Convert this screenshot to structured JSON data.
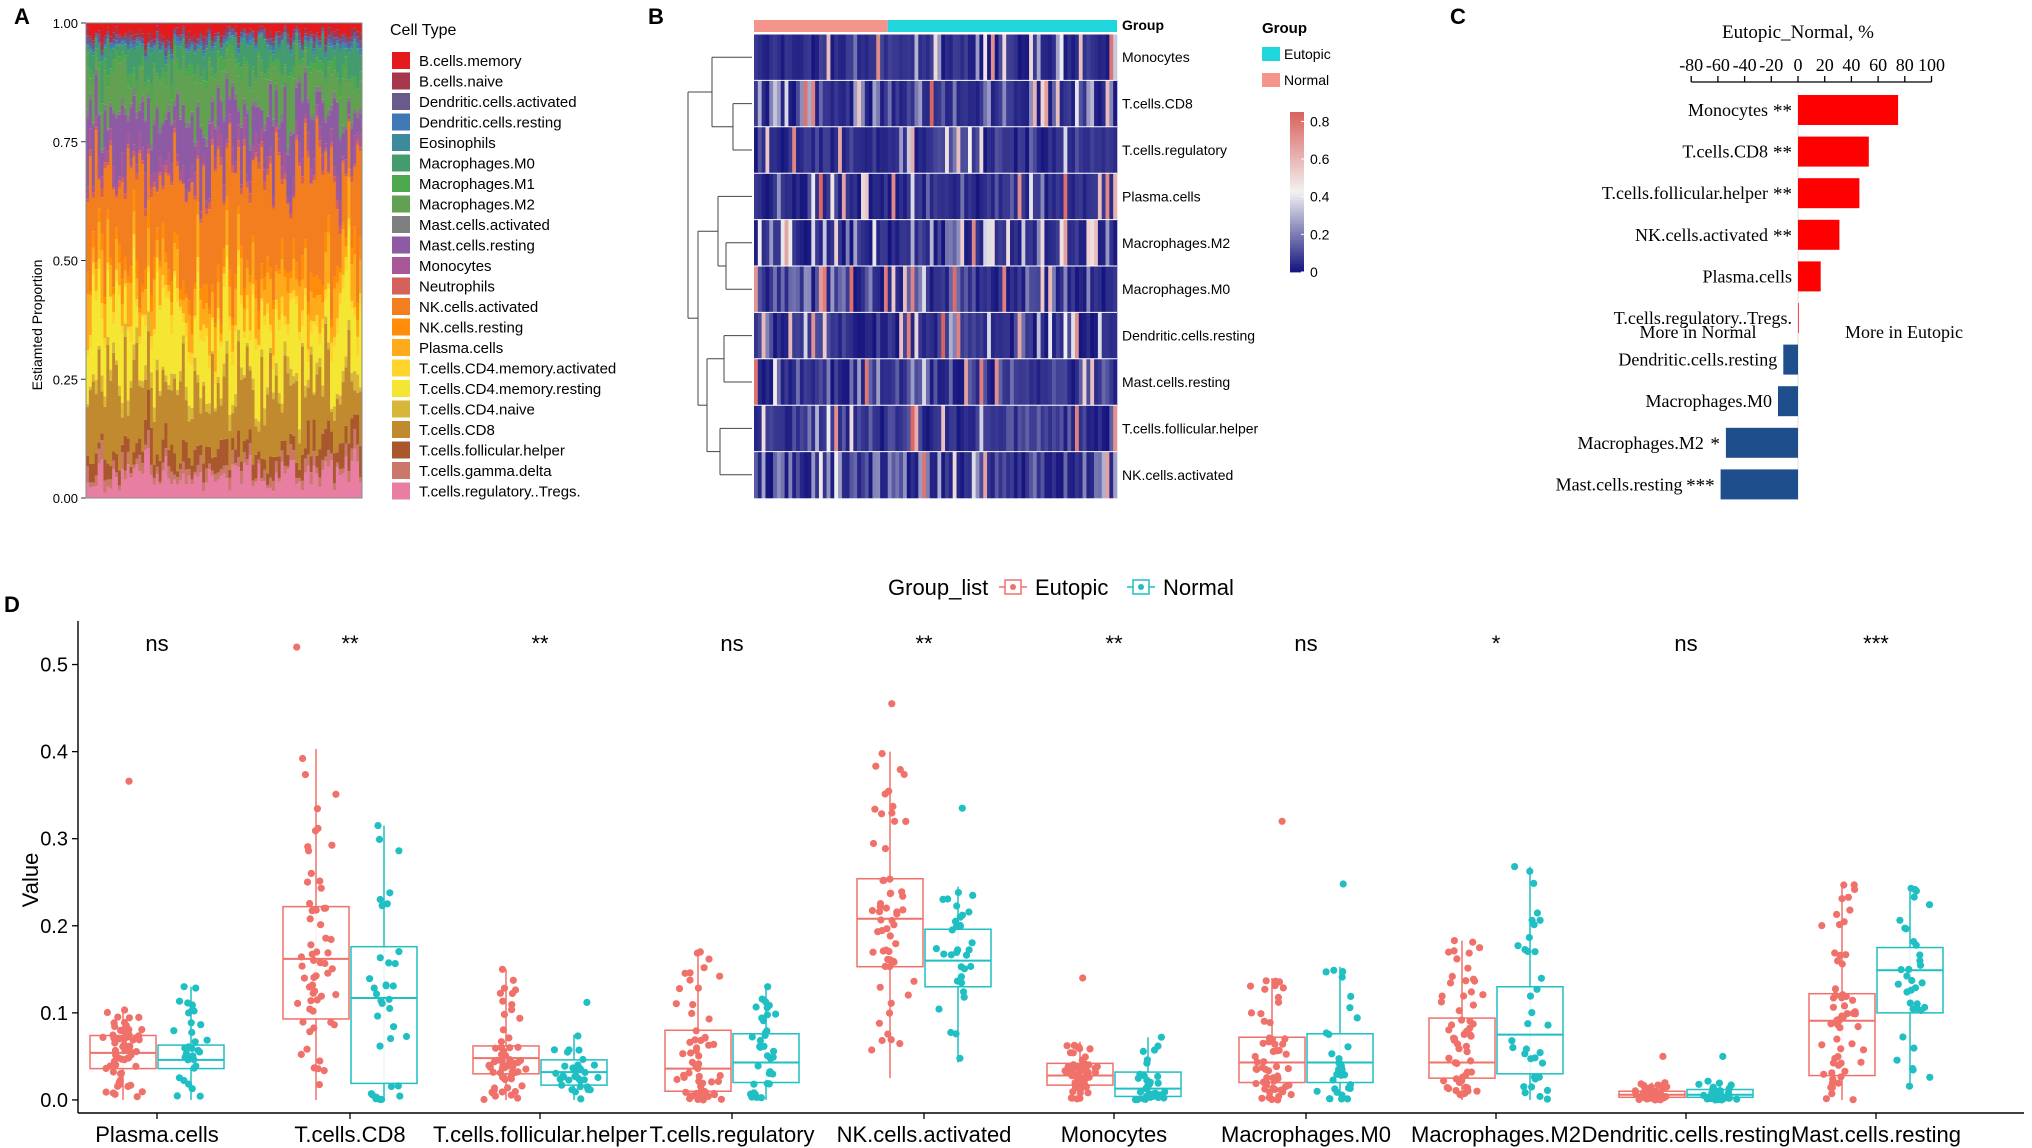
{
  "panel_labels": [
    "A",
    "B",
    "C",
    "D"
  ],
  "chart_data": [
    {
      "panel": "A",
      "type": "bar",
      "subtype": "stacked-100",
      "ylabel": "Estiamted Proportion",
      "yticks": [
        "0.00",
        "0.25",
        "0.50",
        "0.75",
        "1.00"
      ],
      "ylim": [
        0,
        1
      ],
      "n_samples": 95,
      "legend_title": "Cell Type",
      "cell_types": [
        {
          "name": "B.cells.memory",
          "color": "#e41a1c",
          "mean": 0.02
        },
        {
          "name": "B.cells.naive",
          "color": "#a6374b",
          "mean": 0.01
        },
        {
          "name": "Dendritic.cells.activated",
          "color": "#6a5a8c",
          "mean": 0.01
        },
        {
          "name": "Dendritic.cells.resting",
          "color": "#3f78b5",
          "mean": 0.005
        },
        {
          "name": "Eosinophils",
          "color": "#3d8a9c",
          "mean": 0.005
        },
        {
          "name": "Macrophages.M0",
          "color": "#449b6e",
          "mean": 0.04
        },
        {
          "name": "Macrophages.M1",
          "color": "#4da74e",
          "mean": 0.02
        },
        {
          "name": "Macrophages.M2",
          "color": "#62a052",
          "mean": 0.07
        },
        {
          "name": "Mast.cells.activated",
          "color": "#7f7f7f",
          "mean": 0.01
        },
        {
          "name": "Mast.cells.resting",
          "color": "#8d5aa3",
          "mean": 0.09
        },
        {
          "name": "Monocytes",
          "color": "#a65898",
          "mean": 0.03
        },
        {
          "name": "Neutrophils",
          "color": "#d4615a",
          "mean": 0.01
        },
        {
          "name": "NK.cells.activated",
          "color": "#f27e1f",
          "mean": 0.2
        },
        {
          "name": "NK.cells.resting",
          "color": "#ff8c0a",
          "mean": 0.03
        },
        {
          "name": "Plasma.cells",
          "color": "#ffaa1a",
          "mean": 0.06
        },
        {
          "name": "T.cells.CD4.memory.activated",
          "color": "#ffd42a",
          "mean": 0.02
        },
        {
          "name": "T.cells.CD4.memory.resting",
          "color": "#f5e633",
          "mean": 0.12
        },
        {
          "name": "T.cells.CD4.naive",
          "color": "#d8b63a",
          "mean": 0.02
        },
        {
          "name": "T.cells.CD8",
          "color": "#c28a2e",
          "mean": 0.14
        },
        {
          "name": "T.cells.follicular.helper",
          "color": "#a9582e",
          "mean": 0.04
        },
        {
          "name": "T.cells.gamma.delta",
          "color": "#c9786a",
          "mean": 0.02
        },
        {
          "name": "T.cells.regulatory..Tregs.",
          "color": "#e87ea2",
          "mean": 0.05
        }
      ]
    },
    {
      "panel": "B",
      "type": "heatmap",
      "rows": [
        "Monocytes",
        "T.cells.CD8",
        "T.cells.regulatory",
        "Plasma.cells",
        "Macrophages.M2",
        "Macrophages.M0",
        "Dendritic.cells.resting",
        "Mast.cells.resting",
        "T.cells.follicular.helper",
        "NK.cells.activated"
      ],
      "annotation_title": "Group",
      "annotation_groups": [
        {
          "name": "Eutopic",
          "color": "#1ed6dc",
          "n": 60
        },
        {
          "name": "Normal",
          "color": "#f4948a",
          "n": 35
        }
      ],
      "column_order": [
        "Normal",
        "Eutopic"
      ],
      "colorbar_ticks": [
        "0.8",
        "0.6",
        "0.4",
        "0.2",
        "0"
      ],
      "value_range": [
        0,
        0.85
      ],
      "colors": {
        "low": "#14147e",
        "mid": "#f2f2f2",
        "high": "#d9625e"
      },
      "row_means": [
        0.06,
        0.2,
        0.08,
        0.05,
        0.35,
        0.15,
        0.08,
        0.12,
        0.1,
        0.2
      ]
    },
    {
      "panel": "C",
      "type": "bar",
      "orientation": "horizontal",
      "title": "Eutopic_Normal, %",
      "xticks": [
        -80,
        -60,
        -40,
        -20,
        0,
        20,
        40,
        60,
        80,
        100
      ],
      "xlim": [
        -80,
        100
      ],
      "categories": [
        "Monocytes",
        "T.cells.CD8",
        "T.cells.follicular.helper",
        "NK.cells.activated",
        "Plasma.cells",
        "T.cells.regulatory..Tregs.",
        "Dendritic.cells.resting",
        "Macrophages.M0",
        "Macrophages.M2",
        "Mast.cells.resting"
      ],
      "significance": [
        "**",
        "**",
        "**",
        "**",
        "",
        "",
        "",
        "",
        "*",
        "***"
      ],
      "values": [
        75,
        53,
        46,
        31,
        17,
        0.5,
        -11,
        -15,
        -54,
        -58
      ],
      "positive_color": "#ff0000",
      "negative_color": "#1f4e8c",
      "annotations": [
        "More in Normal",
        "More in Eutopic"
      ]
    },
    {
      "panel": "D",
      "type": "boxplot",
      "ylabel": "Value",
      "yticks": [
        "0.0",
        "0.1",
        "0.2",
        "0.3",
        "0.4",
        "0.5"
      ],
      "ylim": [
        -0.015,
        0.55
      ],
      "legend_title": "Group_list",
      "series": [
        {
          "name": "Eutopic",
          "color": "#f0706a",
          "n": 60
        },
        {
          "name": "Normal",
          "color": "#1fbfc3",
          "n": 35
        }
      ],
      "categories": [
        "Plasma.cells",
        "T.cells.CD8",
        "T.cells.follicular.helper",
        "T.cells.regulatory",
        "NK.cells.activated",
        "Monocytes",
        "Macrophages.M0",
        "Macrophages.M2",
        "Dendritic.cells.resting",
        "Mast.cells.resting"
      ],
      "significance": [
        "ns",
        "**",
        "**",
        "ns",
        "**",
        "**",
        "ns",
        "*",
        "ns",
        "***"
      ],
      "boxes": {
        "Eutopic": [
          {
            "q1": 0.036,
            "med": 0.054,
            "q3": 0.074,
            "lo": 0.0,
            "hi": 0.107,
            "max": 0.366
          },
          {
            "q1": 0.093,
            "med": 0.162,
            "q3": 0.222,
            "lo": 0.0,
            "hi": 0.403,
            "max": 0.52
          },
          {
            "q1": 0.03,
            "med": 0.048,
            "q3": 0.062,
            "lo": 0.0,
            "hi": 0.15,
            "max": 0.15
          },
          {
            "q1": 0.01,
            "med": 0.036,
            "q3": 0.08,
            "lo": 0.0,
            "hi": 0.17,
            "max": 0.17
          },
          {
            "q1": 0.153,
            "med": 0.208,
            "q3": 0.254,
            "lo": 0.025,
            "hi": 0.4,
            "max": 0.455
          },
          {
            "q1": 0.017,
            "med": 0.028,
            "q3": 0.042,
            "lo": 0.0,
            "hi": 0.067,
            "max": 0.14
          },
          {
            "q1": 0.02,
            "med": 0.043,
            "q3": 0.072,
            "lo": 0.0,
            "hi": 0.14,
            "max": 0.32
          },
          {
            "q1": 0.025,
            "med": 0.043,
            "q3": 0.094,
            "lo": 0.0,
            "hi": 0.183,
            "max": 0.183
          },
          {
            "q1": 0.003,
            "med": 0.006,
            "q3": 0.01,
            "lo": 0.0,
            "hi": 0.02,
            "max": 0.05
          },
          {
            "q1": 0.028,
            "med": 0.091,
            "q3": 0.122,
            "lo": 0.0,
            "hi": 0.247,
            "max": 0.247
          }
        ],
        "Normal": [
          {
            "q1": 0.036,
            "med": 0.046,
            "q3": 0.063,
            "lo": 0.0,
            "hi": 0.13,
            "max": 0.13
          },
          {
            "q1": 0.019,
            "med": 0.117,
            "q3": 0.176,
            "lo": 0.0,
            "hi": 0.315,
            "max": 0.315
          },
          {
            "q1": 0.017,
            "med": 0.032,
            "q3": 0.046,
            "lo": 0.0,
            "hi": 0.075,
            "max": 0.112
          },
          {
            "q1": 0.02,
            "med": 0.043,
            "q3": 0.076,
            "lo": 0.0,
            "hi": 0.13,
            "max": 0.13
          },
          {
            "q1": 0.13,
            "med": 0.16,
            "q3": 0.196,
            "lo": 0.043,
            "hi": 0.245,
            "max": 0.335
          },
          {
            "q1": 0.004,
            "med": 0.013,
            "q3": 0.032,
            "lo": 0.0,
            "hi": 0.072,
            "max": 0.072
          },
          {
            "q1": 0.02,
            "med": 0.043,
            "q3": 0.076,
            "lo": 0.0,
            "hi": 0.153,
            "max": 0.248
          },
          {
            "q1": 0.03,
            "med": 0.075,
            "q3": 0.13,
            "lo": 0.0,
            "hi": 0.268,
            "max": 0.268
          },
          {
            "q1": 0.003,
            "med": 0.006,
            "q3": 0.012,
            "lo": 0.0,
            "hi": 0.022,
            "max": 0.05
          },
          {
            "q1": 0.1,
            "med": 0.149,
            "q3": 0.175,
            "lo": 0.013,
            "hi": 0.243,
            "max": 0.243
          }
        ]
      }
    }
  ]
}
